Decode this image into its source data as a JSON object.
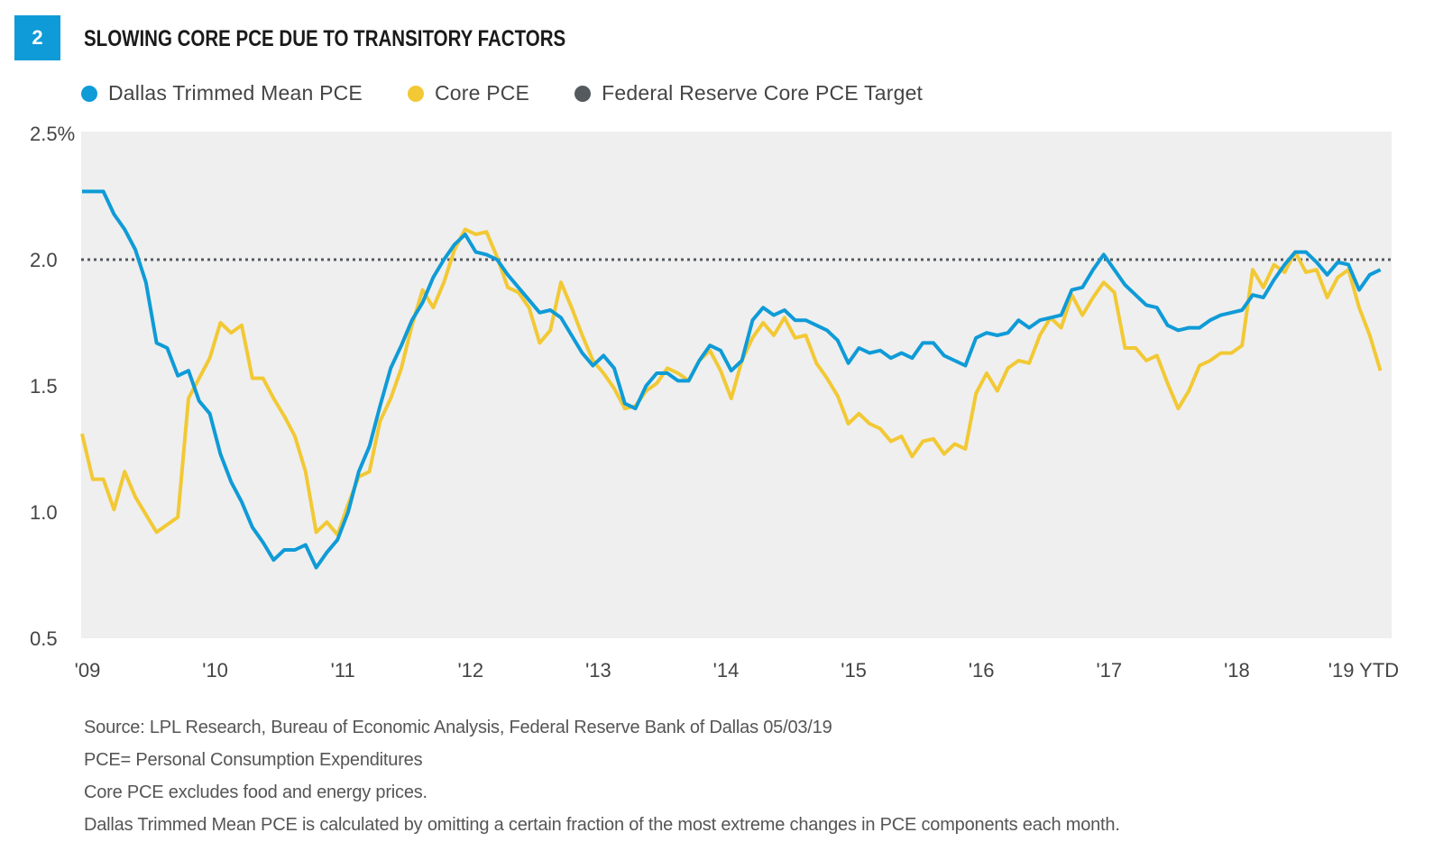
{
  "header": {
    "badge": "2",
    "title": "SLOWING CORE PCE DUE TO TRANSITORY FACTORS"
  },
  "colors": {
    "badge": "#0f9bd7",
    "dallas": "#0f9bd7",
    "core": "#f2c935",
    "target": "#555a5f",
    "plot_bg": "#efefef"
  },
  "legend": [
    {
      "label": "Dallas Trimmed Mean PCE",
      "color": "#0f9bd7"
    },
    {
      "label": "Core PCE",
      "color": "#f2c935"
    },
    {
      "label": "Federal Reserve Core PCE Target",
      "color": "#555a5f"
    }
  ],
  "chart_data": {
    "type": "line",
    "title": "SLOWING CORE PCE DUE TO TRANSITORY FACTORS",
    "xlabel": "",
    "ylabel": "",
    "x_start": "2009-01",
    "frequency": "monthly",
    "ylim": [
      0.5,
      2.5
    ],
    "y_ticks": [
      "2.5%",
      "2.0",
      "1.5",
      "1.0",
      "0.5"
    ],
    "y_tick_values": [
      2.5,
      2.0,
      1.5,
      1.0,
      0.5
    ],
    "x_ticks": [
      "'09",
      "'10",
      "'11",
      "'12",
      "'13",
      "'14",
      "'15",
      "'16",
      "'17",
      "'18",
      "'19 YTD"
    ],
    "grid": false,
    "legend_position": "top-left",
    "target": {
      "name": "Federal Reserve Core PCE Target",
      "value": 2.0
    },
    "series": [
      {
        "name": "Dallas Trimmed Mean PCE",
        "values": [
          2.27,
          2.27,
          2.27,
          2.18,
          2.12,
          2.04,
          1.91,
          1.67,
          1.65,
          1.54,
          1.56,
          1.44,
          1.39,
          1.23,
          1.12,
          1.04,
          0.94,
          0.88,
          0.81,
          0.85,
          0.85,
          0.87,
          0.78,
          0.84,
          0.89,
          1.0,
          1.16,
          1.26,
          1.42,
          1.57,
          1.66,
          1.76,
          1.83,
          1.93,
          2.0,
          2.06,
          2.1,
          2.03,
          2.02,
          2.0,
          1.94,
          1.89,
          1.84,
          1.79,
          1.8,
          1.77,
          1.7,
          1.63,
          1.58,
          1.62,
          1.57,
          1.43,
          1.41,
          1.5,
          1.55,
          1.55,
          1.52,
          1.52,
          1.6,
          1.66,
          1.64,
          1.56,
          1.6,
          1.76,
          1.81,
          1.78,
          1.8,
          1.76,
          1.76,
          1.74,
          1.72,
          1.68,
          1.59,
          1.65,
          1.63,
          1.64,
          1.61,
          1.63,
          1.61,
          1.67,
          1.67,
          1.62,
          1.6,
          1.58,
          1.69,
          1.71,
          1.7,
          1.71,
          1.76,
          1.73,
          1.76,
          1.77,
          1.78,
          1.88,
          1.89,
          1.96,
          2.02,
          1.96,
          1.9,
          1.86,
          1.82,
          1.81,
          1.74,
          1.72,
          1.73,
          1.73,
          1.76,
          1.78,
          1.79,
          1.8,
          1.86,
          1.85,
          1.92,
          1.98,
          2.03,
          2.03,
          1.99,
          1.94,
          1.99,
          1.98,
          1.88,
          1.94,
          1.96
        ]
      },
      {
        "name": "Core PCE",
        "values": [
          1.31,
          1.13,
          1.13,
          1.01,
          1.16,
          1.06,
          0.99,
          0.92,
          0.95,
          0.98,
          1.45,
          1.53,
          1.61,
          1.75,
          1.71,
          1.74,
          1.53,
          1.53,
          1.45,
          1.38,
          1.3,
          1.16,
          0.92,
          0.96,
          0.91,
          1.03,
          1.14,
          1.16,
          1.36,
          1.45,
          1.57,
          1.74,
          1.88,
          1.81,
          1.91,
          2.04,
          2.12,
          2.1,
          2.11,
          2.01,
          1.89,
          1.87,
          1.81,
          1.67,
          1.72,
          1.91,
          1.81,
          1.7,
          1.6,
          1.55,
          1.49,
          1.41,
          1.42,
          1.48,
          1.51,
          1.57,
          1.55,
          1.52,
          1.6,
          1.64,
          1.56,
          1.45,
          1.6,
          1.69,
          1.75,
          1.7,
          1.77,
          1.69,
          1.7,
          1.59,
          1.53,
          1.46,
          1.35,
          1.39,
          1.35,
          1.33,
          1.28,
          1.3,
          1.22,
          1.28,
          1.29,
          1.23,
          1.27,
          1.25,
          1.47,
          1.55,
          1.48,
          1.57,
          1.6,
          1.59,
          1.7,
          1.77,
          1.73,
          1.86,
          1.78,
          1.85,
          1.91,
          1.87,
          1.65,
          1.65,
          1.6,
          1.62,
          1.51,
          1.41,
          1.48,
          1.58,
          1.6,
          1.63,
          1.63,
          1.66,
          1.96,
          1.89,
          1.98,
          1.95,
          2.03,
          1.95,
          1.96,
          1.85,
          1.93,
          1.96,
          1.81,
          1.7,
          1.56
        ]
      }
    ]
  },
  "notes": [
    "Source: LPL Research, Bureau of Economic Analysis, Federal Reserve Bank of Dallas  05/03/19",
    "PCE= Personal Consumption Expenditures",
    "Core PCE excludes food and energy prices.",
    "Dallas Trimmed Mean PCE is calculated by omitting a certain fraction of the most extreme changes in PCE components each month."
  ]
}
